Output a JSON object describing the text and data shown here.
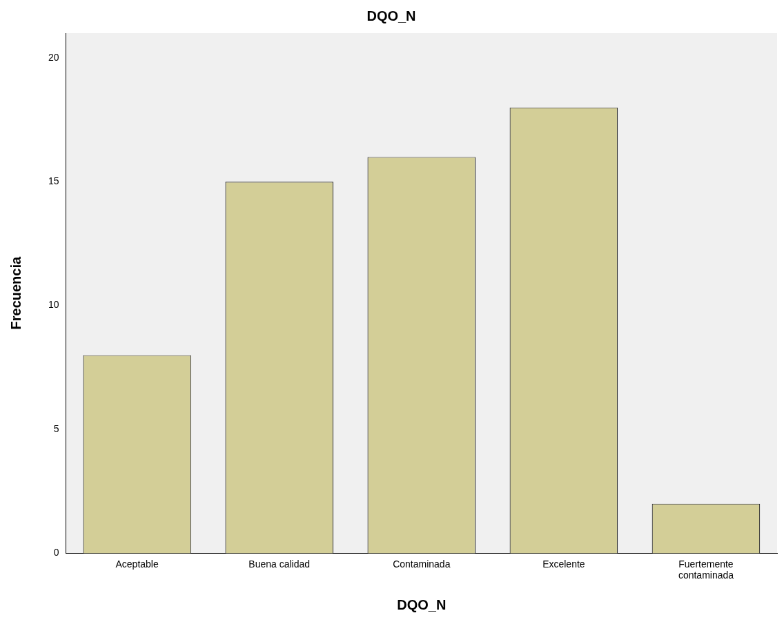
{
  "chart_data": {
    "type": "bar",
    "title": "DQO_N",
    "xlabel": "DQO_N",
    "ylabel": "Frecuencia",
    "categories": [
      "Aceptable",
      "Buena calidad",
      "Contaminada",
      "Excelente",
      "Fuertemente contaminada"
    ],
    "values": [
      8,
      15,
      16,
      18,
      2
    ],
    "color": "#d3ce97",
    "ylim": [
      0,
      21
    ],
    "yticks": [
      0,
      5,
      10,
      15,
      20
    ],
    "grid": false,
    "legend": false
  }
}
